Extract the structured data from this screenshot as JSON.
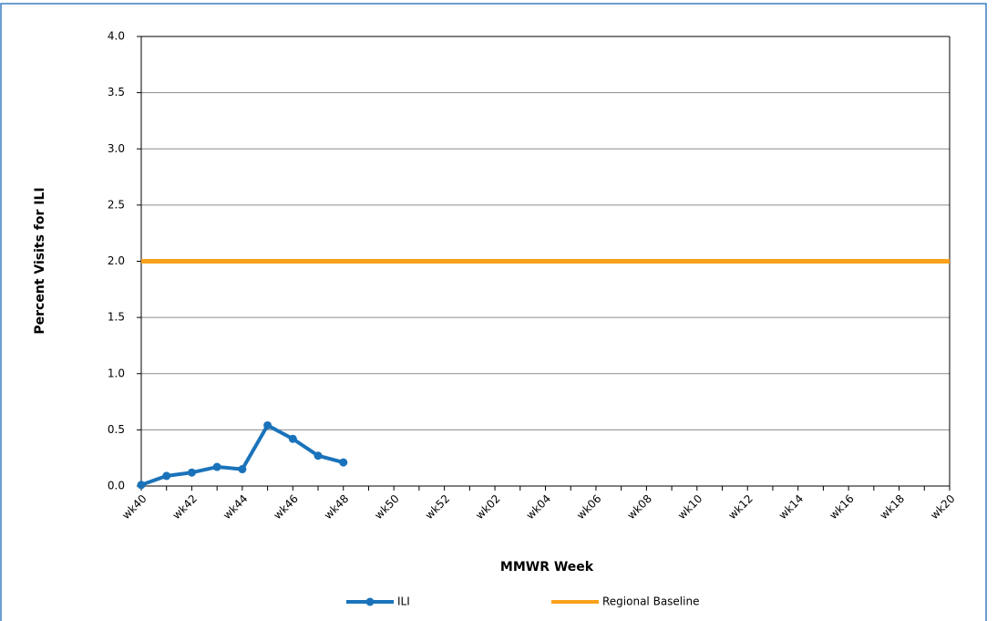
{
  "chart_data": {
    "type": "line",
    "xlabel": "MMWR Week",
    "ylabel": "Percent Visits for ILI",
    "categories": [
      "wk40",
      null,
      "wk42",
      null,
      "wk44",
      null,
      "wk46",
      null,
      "wk48",
      null,
      "wk50",
      null,
      "wk52",
      null,
      "wk02",
      null,
      "wk04",
      null,
      "wk06",
      null,
      "wk08",
      null,
      "wk10",
      null,
      "wk12",
      null,
      "wk14",
      null,
      "wk16",
      null,
      "wk18",
      null,
      "wk20"
    ],
    "series": [
      {
        "name": "ILI",
        "color": "#1a73ba",
        "markers": true,
        "values": [
          0.01,
          0.09,
          0.12,
          0.17,
          0.15,
          0.54,
          0.42,
          0.27,
          0.21,
          null,
          null,
          null,
          null,
          null,
          null,
          null,
          null,
          null,
          null,
          null,
          null,
          null,
          null,
          null,
          null,
          null,
          null,
          null,
          null,
          null,
          null,
          null,
          null
        ]
      },
      {
        "name": "Regional Baseline",
        "color": "#f9a11b",
        "markers": false,
        "values": [
          2.0,
          2.0,
          2.0,
          2.0,
          2.0,
          2.0,
          2.0,
          2.0,
          2.0,
          2.0,
          2.0,
          2.0,
          2.0,
          2.0,
          2.0,
          2.0,
          2.0,
          2.0,
          2.0,
          2.0,
          2.0,
          2.0,
          2.0,
          2.0,
          2.0,
          2.0,
          2.0,
          2.0,
          2.0,
          2.0,
          2.0,
          2.0,
          2.0
        ]
      }
    ],
    "ylim": [
      0,
      4
    ],
    "yticks": [
      {
        "value": 0,
        "label": "0.0"
      },
      0.5,
      {
        "value": 1,
        "label": "1.0"
      },
      1.5,
      {
        "value": 2,
        "label": "2.0"
      },
      2.5,
      {
        "value": 3,
        "label": "3.0"
      },
      3.5,
      {
        "value": 4,
        "label": "4.0"
      }
    ],
    "grid": true,
    "legend": "bottom"
  }
}
